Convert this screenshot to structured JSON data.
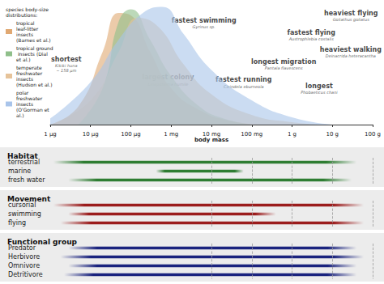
{
  "chart_data": [
    {
      "type": "area",
      "legend_title": "species body-size distributions:",
      "xlabel": "body mass",
      "log": "x",
      "grid": false,
      "legend": "upper left",
      "tick_labels": "x",
      "xlim": [
        1e-06,
        100
      ],
      "xticks": [
        {
          "value": 1e-06,
          "label": "1 µg"
        },
        {
          "value": 1e-05,
          "label": "10 µg"
        },
        {
          "value": 0.0001,
          "label": "100 µg"
        },
        {
          "value": 0.001,
          "label": "1 mg"
        },
        {
          "value": 0.01,
          "label": "10 mg"
        },
        {
          "value": 0.1,
          "label": "100 mg"
        },
        {
          "value": 1,
          "label": "1 g"
        },
        {
          "value": 10,
          "label": "10 g"
        },
        {
          "value": 100,
          "label": "100 g"
        }
      ],
      "ylim": [
        0,
        1
      ],
      "series": [
        {
          "name": "tropical leaf-litter insects (Barnes et al.)",
          "color": "#e0a872",
          "x": [
            1e-06,
            5e-06,
            2e-05,
            5e-05,
            0.0001,
            0.0003,
            0.001,
            0.005,
            0.03,
            0.2
          ],
          "values": [
            0,
            0.15,
            0.6,
            0.92,
            0.9,
            0.6,
            0.3,
            0.12,
            0.03,
            0
          ]
        },
        {
          "name": "tropical ground insects (Dial et al.)",
          "color": "#8fbf8a",
          "x": [
            5e-06,
            2e-05,
            5e-05,
            0.0001,
            0.0003,
            0.001,
            0.005,
            0.02,
            0.1
          ],
          "values": [
            0,
            0.3,
            0.85,
            0.95,
            0.7,
            0.4,
            0.15,
            0.05,
            0
          ]
        },
        {
          "name": "temperate freshwater insects (Hudson et al.)",
          "color": "#e6c39a",
          "x": [
            1e-06,
            1e-05,
            5e-05,
            0.00015,
            0.0005,
            0.002,
            0.01,
            0.1,
            1,
            5
          ],
          "values": [
            0,
            0.2,
            0.6,
            0.88,
            0.8,
            0.5,
            0.25,
            0.08,
            0.02,
            0
          ]
        },
        {
          "name": "polar freshwater insects (O'Gorman et al.)",
          "color": "#a9c4ea",
          "x": [
            1e-06,
            1e-05,
            5e-05,
            0.0002,
            0.0006,
            0.002,
            0.01,
            0.1,
            1,
            10
          ],
          "values": [
            0.05,
            0.35,
            0.7,
            0.92,
            0.97,
            0.75,
            0.45,
            0.2,
            0.06,
            0
          ]
        }
      ],
      "annotations": [
        {
          "text": "shortest",
          "species": "Kikiki huna",
          "size": "~ 158 µm",
          "x": 2.5e-06,
          "y": 0.5
        },
        {
          "text": "largest colony",
          "species": "Linepithema humile",
          "x": 0.00084,
          "y": 0.37
        },
        {
          "text": "fastest swimming",
          "species": "Gyrinus sp.",
          "x": 0.0065,
          "y": 0.84
        },
        {
          "text": "fastest running",
          "species": "Cicindela eburneola",
          "x": 0.063,
          "y": 0.35
        },
        {
          "text": "longest migration",
          "species": "Pantala flavescens",
          "x": 0.62,
          "y": 0.5
        },
        {
          "text": "fastest flying",
          "species": "Austrophlebia costalis",
          "x": 3,
          "y": 0.74
        },
        {
          "text": "longest",
          "species": "Phobaeticus chani",
          "x": 4.7,
          "y": 0.3
        },
        {
          "text": "heaviest flying",
          "species": "Goliathus goliatus",
          "x": 29,
          "y": 0.9
        },
        {
          "text": "heaviest walking",
          "species": "Deinacrida heteracantha",
          "x": 73,
          "y": 0.6
        }
      ]
    },
    {
      "type": "range",
      "title": "Habitat",
      "log": "x",
      "grid": true,
      "tick_labels": "y",
      "xlim": [
        1e-06,
        100
      ],
      "xticks": [
        1e-06,
        1e-05,
        0.0001,
        0.001,
        0.01,
        0.1,
        1,
        10,
        100
      ],
      "color": "#2e7d32",
      "categories": [
        "terrestrial",
        "marine",
        "fresh water"
      ],
      "low": [
        1.2e-06,
        0.00042,
        2.8e-06
      ],
      "high": [
        40,
        0.063,
        30
      ]
    },
    {
      "type": "range",
      "title": "Movement",
      "log": "x",
      "grid": true,
      "tick_labels": "y",
      "xlim": [
        1e-06,
        100
      ],
      "xticks": [
        1e-06,
        1e-05,
        0.0001,
        0.001,
        0.01,
        0.1,
        1,
        10,
        100
      ],
      "color": "#9b1c1c",
      "categories": [
        "cursorial",
        "swimming",
        "flying"
      ],
      "low": [
        1.2e-06,
        2.8e-06,
        1.8e-06
      ],
      "high": [
        60,
        0.4,
        60
      ]
    },
    {
      "type": "range",
      "title": "Functional group",
      "log": "x",
      "grid": true,
      "tick_labels": "y",
      "xlim": [
        1e-06,
        100
      ],
      "xticks": [
        1e-06,
        1e-05,
        0.0001,
        0.001,
        0.01,
        0.1,
        1,
        10,
        100
      ],
      "color": "#1a237e",
      "categories": [
        "Predator",
        "Herbivore",
        "Omnivore",
        "Detritivore"
      ],
      "low": [
        2.8e-06,
        1.8e-06,
        2.8e-06,
        2.2e-06
      ],
      "high": [
        40,
        60,
        40,
        40
      ]
    }
  ]
}
